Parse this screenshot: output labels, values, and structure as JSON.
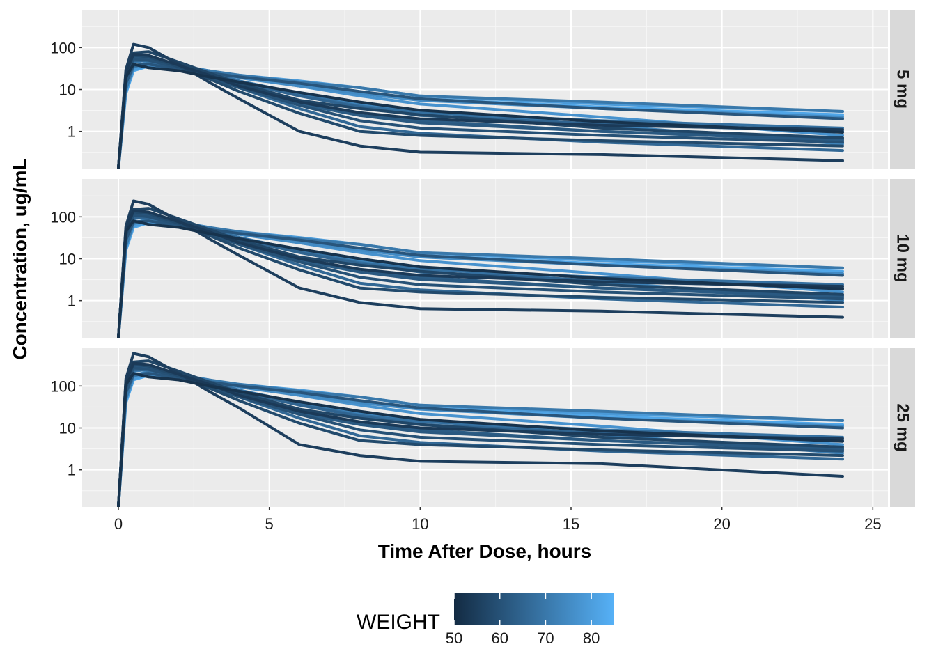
{
  "chart_data": {
    "type": "line",
    "facet": "dose",
    "panels": [
      "5 mg",
      "10 mg",
      "25 mg"
    ],
    "xlabel": "Time After Dose, hours",
    "ylabel": "Concentration, ug/mL",
    "xlim": [
      -1.2,
      25.5
    ],
    "x_ticks": [
      0,
      5,
      10,
      15,
      20,
      25
    ],
    "y_scale": "log10",
    "y_ticks": [
      1,
      10,
      100
    ],
    "y_tick_labels": [
      "1",
      "10",
      "100"
    ],
    "ylim_by_panel": [
      [
        0.13,
        800
      ],
      [
        0.13,
        800
      ],
      [
        0.13,
        800
      ]
    ],
    "sampling_times": [
      0,
      0.25,
      0.5,
      1,
      2,
      3,
      4,
      6,
      8,
      10,
      16,
      24
    ],
    "color_legend": {
      "title": "WEIGHT",
      "ticks": [
        50,
        60,
        70,
        80
      ],
      "range": [
        50,
        85
      ],
      "low_color": "#132B43",
      "high_color": "#56B1F7"
    },
    "panel_bg": "#EBEBEB",
    "strip_bg": "#D9D9D9",
    "grid": true,
    "series_by_panel": [
      [
        {
          "weight": 52,
          "values": [
            0.13,
            20,
            40,
            33,
            28,
            20,
            15,
            8.5,
            5.0,
            3.2,
            1.7,
            0.95
          ]
        },
        {
          "weight": 58,
          "values": [
            0.13,
            28,
            65,
            60,
            35,
            18,
            9.0,
            2.7,
            1.0,
            0.8,
            0.6,
            0.45
          ]
        },
        {
          "weight": 61,
          "values": [
            0.13,
            14,
            38,
            40,
            31,
            25,
            20,
            14,
            9.0,
            6.0,
            3.5,
            2.0
          ]
        },
        {
          "weight": 55,
          "values": [
            0.13,
            30,
            120,
            100,
            40,
            15,
            6.0,
            1.0,
            0.45,
            0.32,
            0.28,
            0.2
          ]
        },
        {
          "weight": 66,
          "values": [
            0.13,
            22,
            50,
            48,
            35,
            20,
            11,
            3.5,
            1.3,
            0.9,
            0.55,
            0.35
          ]
        },
        {
          "weight": 70,
          "values": [
            0.13,
            10,
            35,
            42,
            34,
            28,
            22,
            15,
            11,
            7.0,
            5.0,
            3.0
          ]
        },
        {
          "weight": 63,
          "values": [
            0.13,
            25,
            60,
            55,
            35,
            22,
            12,
            4.5,
            2.4,
            1.8,
            1.0,
            0.6
          ]
        },
        {
          "weight": 75,
          "values": [
            0.13,
            12,
            34,
            45,
            38,
            28,
            19,
            12,
            8.0,
            5.5,
            3.5,
            2.2
          ]
        },
        {
          "weight": 57,
          "values": [
            0.13,
            18,
            75,
            80,
            45,
            25,
            14,
            5.5,
            3.5,
            2.5,
            1.2,
            0.7
          ]
        },
        {
          "weight": 68,
          "values": [
            0.13,
            16,
            48,
            52,
            40,
            26,
            16,
            7.5,
            4.0,
            2.8,
            1.8,
            1.2
          ]
        },
        {
          "weight": 79,
          "values": [
            0.13,
            9.0,
            30,
            38,
            33,
            27,
            22,
            16,
            11,
            7.0,
            4.5,
            3.0
          ]
        },
        {
          "weight": 82,
          "values": [
            0.13,
            8.0,
            28,
            36,
            33,
            26,
            20,
            13,
            8.5,
            6.0,
            3.8,
            2.5
          ]
        },
        {
          "weight": 73,
          "values": [
            0.13,
            15,
            45,
            50,
            38,
            25,
            16,
            8.0,
            4.5,
            3.0,
            1.4,
            0.5
          ]
        },
        {
          "weight": 60,
          "values": [
            0.13,
            24,
            55,
            50,
            33,
            19,
            11,
            4.2,
            1.8,
            1.2,
            0.8,
            0.55
          ]
        },
        {
          "weight": 65,
          "values": [
            0.13,
            20,
            48,
            50,
            37,
            24,
            15,
            7.0,
            3.8,
            2.4,
            1.5,
            1.0
          ]
        },
        {
          "weight": 54,
          "values": [
            0.13,
            26,
            70,
            65,
            38,
            22,
            12,
            5.0,
            2.8,
            2.0,
            1.4,
            1.1
          ]
        },
        {
          "weight": 77,
          "values": [
            0.13,
            11,
            36,
            44,
            37,
            28,
            20,
            12,
            7.0,
            4.5,
            2.2,
            0.8
          ]
        },
        {
          "weight": 62,
          "values": [
            0.13,
            21,
            52,
            52,
            36,
            22,
            13,
            5.5,
            2.4,
            1.6,
            1.0,
            0.65
          ]
        }
      ],
      [
        {
          "weight": 52,
          "values": [
            0.13,
            45,
            80,
            66,
            56,
            40,
            30,
            17,
            10,
            6.4,
            3.4,
            1.9
          ]
        },
        {
          "weight": 58,
          "values": [
            0.13,
            56,
            130,
            120,
            70,
            36,
            18,
            5.4,
            2.0,
            1.6,
            1.2,
            0.9
          ]
        },
        {
          "weight": 61,
          "values": [
            0.13,
            28,
            76,
            80,
            62,
            50,
            40,
            28,
            18,
            12,
            7.0,
            4.0
          ]
        },
        {
          "weight": 55,
          "values": [
            0.13,
            60,
            240,
            200,
            80,
            30,
            12,
            2.0,
            0.9,
            0.64,
            0.56,
            0.4
          ]
        },
        {
          "weight": 66,
          "values": [
            0.13,
            44,
            100,
            96,
            70,
            40,
            22,
            7.0,
            2.6,
            1.8,
            1.1,
            0.7
          ]
        },
        {
          "weight": 70,
          "values": [
            0.13,
            20,
            70,
            84,
            68,
            56,
            44,
            30,
            22,
            14,
            10,
            6.0
          ]
        },
        {
          "weight": 63,
          "values": [
            0.13,
            50,
            120,
            110,
            70,
            44,
            24,
            9.0,
            4.8,
            3.6,
            2.0,
            1.2
          ]
        },
        {
          "weight": 75,
          "values": [
            0.13,
            24,
            68,
            90,
            76,
            56,
            38,
            24,
            16,
            11,
            7.0,
            4.4
          ]
        },
        {
          "weight": 57,
          "values": [
            0.13,
            36,
            150,
            160,
            90,
            50,
            28,
            11,
            7.0,
            5.0,
            2.4,
            1.4
          ]
        },
        {
          "weight": 68,
          "values": [
            0.13,
            32,
            96,
            104,
            80,
            52,
            32,
            15,
            8.0,
            5.6,
            3.6,
            2.4
          ]
        },
        {
          "weight": 79,
          "values": [
            0.13,
            18,
            60,
            76,
            66,
            54,
            44,
            32,
            22,
            14,
            9.0,
            6.0
          ]
        },
        {
          "weight": 82,
          "values": [
            0.13,
            16,
            56,
            72,
            66,
            52,
            40,
            26,
            17,
            12,
            7.6,
            5.0
          ]
        },
        {
          "weight": 73,
          "values": [
            0.13,
            30,
            90,
            100,
            76,
            50,
            32,
            16,
            9.0,
            6.0,
            2.8,
            1.0
          ]
        },
        {
          "weight": 60,
          "values": [
            0.13,
            48,
            110,
            100,
            66,
            38,
            22,
            8.4,
            3.6,
            2.4,
            1.6,
            1.1
          ]
        },
        {
          "weight": 65,
          "values": [
            0.13,
            40,
            96,
            100,
            74,
            48,
            30,
            14,
            7.6,
            4.8,
            3.0,
            2.0
          ]
        },
        {
          "weight": 54,
          "values": [
            0.13,
            52,
            140,
            130,
            76,
            44,
            24,
            10,
            5.6,
            4.0,
            2.8,
            2.2
          ]
        },
        {
          "weight": 77,
          "values": [
            0.13,
            22,
            72,
            88,
            74,
            56,
            40,
            24,
            14,
            9.0,
            4.4,
            1.6
          ]
        },
        {
          "weight": 62,
          "values": [
            0.13,
            42,
            104,
            104,
            72,
            44,
            26,
            11,
            4.8,
            3.2,
            2.0,
            1.3
          ]
        }
      ],
      [
        {
          "weight": 52,
          "values": [
            0.13,
            110,
            200,
            165,
            140,
            100,
            75,
            42,
            25,
            16,
            8.5,
            4.8
          ]
        },
        {
          "weight": 58,
          "values": [
            0.13,
            140,
            325,
            300,
            175,
            90,
            45,
            13,
            5.0,
            4.0,
            3.0,
            2.2
          ]
        },
        {
          "weight": 61,
          "values": [
            0.13,
            70,
            190,
            200,
            155,
            125,
            100,
            70,
            45,
            30,
            17,
            10
          ]
        },
        {
          "weight": 55,
          "values": [
            0.13,
            150,
            600,
            500,
            200,
            75,
            30,
            4.0,
            2.2,
            1.6,
            1.4,
            0.7
          ]
        },
        {
          "weight": 66,
          "values": [
            0.13,
            110,
            250,
            240,
            175,
            100,
            55,
            17,
            6.5,
            4.5,
            2.8,
            1.8
          ]
        },
        {
          "weight": 70,
          "values": [
            0.13,
            50,
            175,
            210,
            170,
            140,
            110,
            75,
            55,
            35,
            25,
            15
          ]
        },
        {
          "weight": 63,
          "values": [
            0.13,
            125,
            300,
            275,
            175,
            110,
            60,
            22,
            12,
            9.0,
            5.0,
            3.0
          ]
        },
        {
          "weight": 75,
          "values": [
            0.13,
            60,
            170,
            225,
            190,
            140,
            95,
            60,
            40,
            28,
            17,
            11
          ]
        },
        {
          "weight": 57,
          "values": [
            0.13,
            90,
            375,
            400,
            225,
            125,
            70,
            28,
            17,
            12,
            6.0,
            3.5
          ]
        },
        {
          "weight": 68,
          "values": [
            0.13,
            80,
            240,
            260,
            200,
            130,
            80,
            37,
            20,
            14,
            9.0,
            6.0
          ]
        },
        {
          "weight": 79,
          "values": [
            0.13,
            45,
            150,
            190,
            165,
            135,
            110,
            80,
            55,
            35,
            22,
            15
          ]
        },
        {
          "weight": 82,
          "values": [
            0.13,
            40,
            140,
            180,
            165,
            130,
            100,
            65,
            42,
            30,
            19,
            12
          ]
        },
        {
          "weight": 73,
          "values": [
            0.13,
            75,
            225,
            250,
            190,
            125,
            80,
            40,
            22,
            15,
            7.0,
            2.5
          ]
        },
        {
          "weight": 60,
          "values": [
            0.13,
            120,
            275,
            250,
            165,
            95,
            55,
            21,
            9.0,
            6.0,
            4.0,
            2.8
          ]
        },
        {
          "weight": 65,
          "values": [
            0.13,
            100,
            240,
            250,
            185,
            120,
            75,
            35,
            19,
            12,
            7.5,
            5.0
          ]
        },
        {
          "weight": 54,
          "values": [
            0.13,
            130,
            350,
            325,
            190,
            110,
            60,
            25,
            14,
            10,
            7.0,
            5.5
          ]
        },
        {
          "weight": 77,
          "values": [
            0.13,
            55,
            180,
            220,
            185,
            140,
            100,
            60,
            35,
            22,
            11,
            4.0
          ]
        },
        {
          "weight": 62,
          "values": [
            0.13,
            105,
            260,
            260,
            180,
            110,
            65,
            27,
            12,
            8.0,
            5.0,
            3.2
          ]
        }
      ]
    ]
  }
}
